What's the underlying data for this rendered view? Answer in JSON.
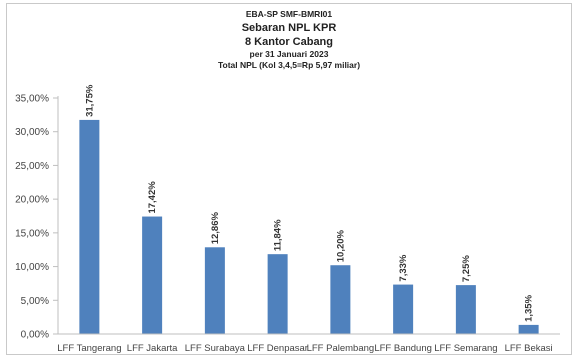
{
  "chart_data": {
    "type": "bar",
    "title_lines": [
      "EBA-SP  SMF-BMRI01",
      "Sebaran NPL KPR",
      "8 Kantor Cabang",
      "per 31 Januari 2023",
      "Total NPL (Kol 3,4,5=Rp 5,97 miliar)"
    ],
    "categories": [
      "LFF Tangerang",
      "LFF Jakarta",
      "LFF Surabaya",
      "LFF Denpasar",
      "LFF Palembang",
      "LFF Bandung",
      "LFF Semarang",
      "LFF Bekasi"
    ],
    "values": [
      31.75,
      17.42,
      12.86,
      11.84,
      10.2,
      7.33,
      7.25,
      1.35
    ],
    "data_labels": [
      "31,75%",
      "17,42%",
      "12,86%",
      "11,84%",
      "10,20%",
      "7,33%",
      "7,25%",
      "1,35%"
    ],
    "y_ticks": [
      0,
      5,
      10,
      15,
      20,
      25,
      30,
      35
    ],
    "y_tick_labels": [
      "0,00%",
      "5,00%",
      "10,00%",
      "15,00%",
      "20,00%",
      "25,00%",
      "30,00%",
      "35,00%"
    ],
    "ylim": [
      0,
      35
    ],
    "grid": false,
    "legend": "none",
    "bar_color": "#4f81bd"
  }
}
